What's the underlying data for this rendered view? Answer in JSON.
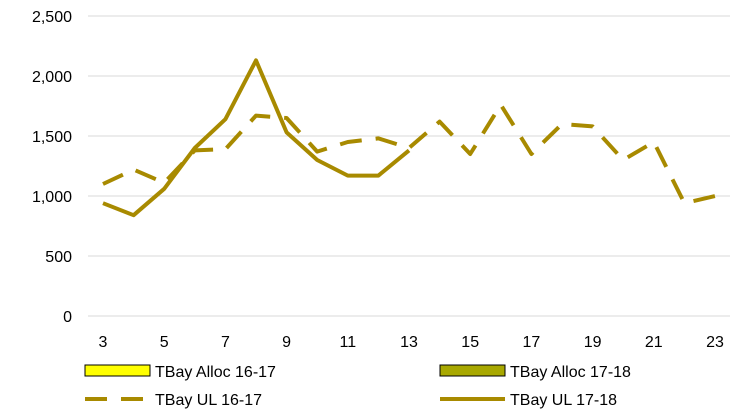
{
  "chart_data": {
    "type": "line",
    "title": "",
    "xlabel": "",
    "ylabel": "",
    "x_ticks": [
      3,
      5,
      7,
      9,
      11,
      13,
      15,
      17,
      19,
      21,
      23
    ],
    "x_tick_labels": [
      "3",
      "5",
      "7",
      "9",
      "11",
      "13",
      "15",
      "17",
      "19",
      "21",
      "23"
    ],
    "xlim": [
      3,
      23
    ],
    "y_ticks": [
      0,
      500,
      1000,
      1500,
      2000,
      2500
    ],
    "y_tick_labels": [
      "0",
      "500",
      "1,000",
      "1,500",
      "2,000",
      "2,500"
    ],
    "ylim": [
      0,
      2500
    ],
    "grid": "horizontal",
    "legend_position": "bottom",
    "series": [
      {
        "name": "TBay Alloc 16-17",
        "kind": "area",
        "color": "#FFFF00",
        "edge_color": "#000000",
        "values": []
      },
      {
        "name": "TBay Alloc 17-18",
        "kind": "area",
        "color": "#A8A800",
        "edge_color": "#000000",
        "values": []
      },
      {
        "name": "TBay UL 16-17",
        "kind": "line",
        "dash": "dashed",
        "color": "#A88A00",
        "x": [
          3,
          4,
          5,
          6,
          7,
          8,
          9,
          10,
          11,
          12,
          13,
          14,
          15,
          16,
          17,
          18,
          19,
          20,
          21,
          22,
          23
        ],
        "values": [
          1100,
          1220,
          1110,
          1380,
          1390,
          1670,
          1650,
          1370,
          1450,
          1480,
          1400,
          1620,
          1350,
          1760,
          1350,
          1600,
          1580,
          1300,
          1450,
          940,
          1000
        ]
      },
      {
        "name": "TBay UL 17-18",
        "kind": "line",
        "dash": "solid",
        "color": "#A88A00",
        "x": [
          3,
          4,
          5,
          6,
          7,
          8,
          9,
          10,
          11,
          12,
          13
        ],
        "values": [
          940,
          840,
          1060,
          1400,
          1640,
          2130,
          1530,
          1300,
          1170,
          1170,
          1380
        ]
      }
    ]
  }
}
